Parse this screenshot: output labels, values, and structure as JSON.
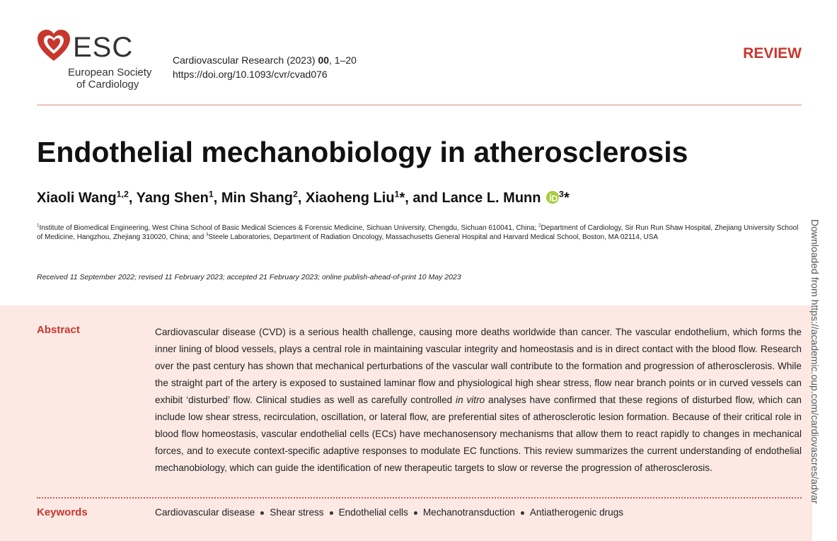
{
  "header": {
    "logo": {
      "abbr": "ESC",
      "line1": "European Society",
      "line2": "of Cardiology"
    },
    "journal": {
      "citation": [
        "Cardiovascular Research (2023) ",
        "00",
        ", 1–20"
      ],
      "doi": "https://doi.org/10.1093/cvr/cvad076"
    },
    "article_type": "REVIEW"
  },
  "title": "Endothelial mechanobiology in atherosclerosis",
  "authors": [
    {
      "text": "Xiaoli Wang",
      "sup": "1,2"
    },
    {
      "text": ", Yang Shen",
      "sup": "1"
    },
    {
      "text": ", Min Shang",
      "sup": "2"
    },
    {
      "text": ", Xiaoheng Liu",
      "sup": "1",
      "after": "*"
    },
    {
      "text": ", and Lance L. Munn",
      "sup": "3",
      "after": "*"
    }
  ],
  "affiliations": [
    {
      "sup": "1",
      "text": "Institute of Biomedical Engineering, West China School of Basic Medical Sciences & Forensic Medicine, Sichuan University, Chengdu, Sichuan 610041, China; "
    },
    {
      "sup": "2",
      "text": "Department of Cardiology, Sir Run Run Shaw Hospital, Zhejiang University School of Medicine, Hangzhou, Zhejiang 310020, China; and "
    },
    {
      "sup": "3",
      "text": "Steele Laboratories, Department of Radiation Oncology, Massachusetts General Hospital and Harvard Medical School, Boston, MA 02114, USA"
    }
  ],
  "history": "Received 11 September 2022; revised 11 February 2023; accepted 21 February 2023; online publish-ahead-of-print 10 May 2023",
  "abstract": {
    "label": "Abstract",
    "parts": [
      "Cardiovascular disease (CVD) is a serious health challenge, causing more deaths worldwide than cancer. The vascular endothelium, which forms the inner lining of blood vessels, plays a central role in maintaining vascular integrity and homeostasis and is in direct contact with the blood flow. Research over the past century has shown that mechanical perturbations of the vascular wall contribute to the formation and progression of atherosclerosis. While the straight part of the artery is exposed to sustained laminar flow and physiological high shear stress, flow near branch points or in curved vessels can exhibit ‘disturbed’ flow. Clinical studies as well as carefully controlled ",
      "in vitro",
      " analyses have confirmed that these regions of disturbed flow, which can include low shear stress, recirculation, oscillation, or lateral flow, are preferential sites of atherosclerotic lesion formation. Because of their critical role in blood flow homeostasis, vascular endothelial cells (ECs) have mechanosensory mechanisms that allow them to react rapidly to changes in mechanical forces, and to execute context-specific adaptive responses to modulate EC functions. This review summarizes the current understanding of endothelial mechanobiology, which can guide the identification of new therapeutic targets to slow or reverse the progression of atherosclerosis."
    ]
  },
  "keywords": {
    "label": "Keywords",
    "items": [
      "Cardiovascular disease",
      "Shear stress",
      "Endothelial cells",
      "Mechanotransduction",
      "Antiatherogenic drugs"
    ]
  },
  "side_note": "Downloaded from https://academic.oup.com/cardiovascres/advar"
}
